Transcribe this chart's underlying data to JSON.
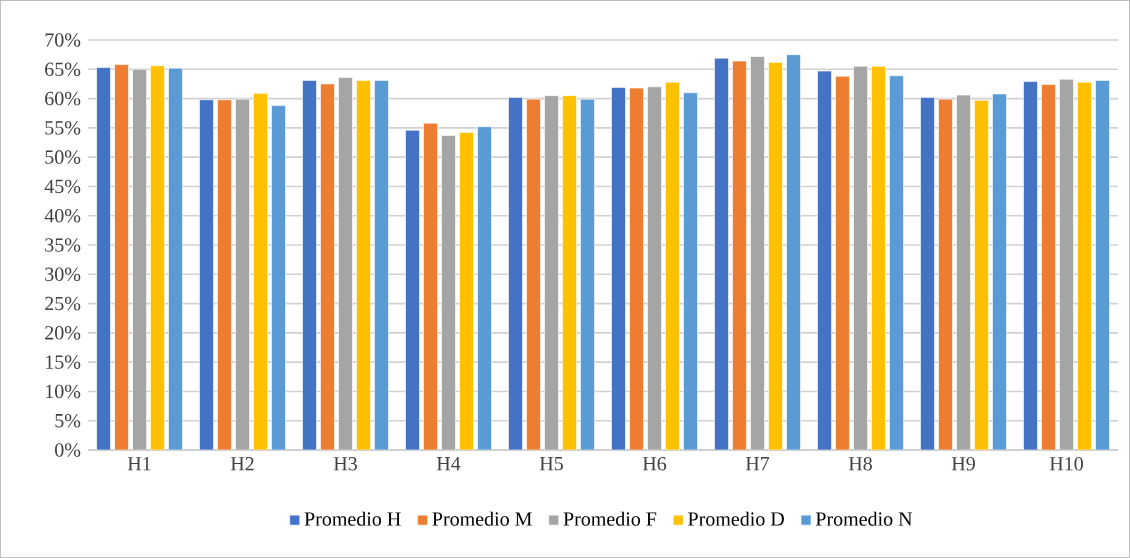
{
  "chart_data": {
    "type": "bar",
    "categories": [
      "H1",
      "H2",
      "H3",
      "H4",
      "H5",
      "H6",
      "H7",
      "H8",
      "H9",
      "H10"
    ],
    "series": [
      {
        "name": "Promedio H",
        "color": "#4472c4",
        "values": [
          65.3,
          59.8,
          63.1,
          54.6,
          60.2,
          61.9,
          66.9,
          64.7,
          60.2,
          62.9
        ]
      },
      {
        "name": "Promedio M",
        "color": "#ed7d31",
        "values": [
          65.8,
          59.8,
          62.5,
          55.8,
          59.9,
          61.8,
          66.4,
          63.8,
          59.9,
          62.4
        ]
      },
      {
        "name": "Promedio F",
        "color": "#a5a5a5",
        "values": [
          65.0,
          59.9,
          63.6,
          53.7,
          60.5,
          62.0,
          67.2,
          65.5,
          60.6,
          63.3
        ]
      },
      {
        "name": "Promedio D",
        "color": "#ffc000",
        "values": [
          65.6,
          60.9,
          63.1,
          54.2,
          60.5,
          62.8,
          66.2,
          65.5,
          59.7,
          62.8
        ]
      },
      {
        "name": "Promedio N",
        "color": "#5b9bd5",
        "values": [
          65.2,
          58.8,
          63.1,
          55.2,
          59.9,
          61.0,
          67.5,
          63.9,
          60.8,
          63.1
        ]
      }
    ],
    "ylim": [
      0,
      70
    ],
    "yticks": [
      {
        "value": 0,
        "label": "0%"
      },
      {
        "value": 5,
        "label": "5%"
      },
      {
        "value": 10,
        "label": "10%"
      },
      {
        "value": 15,
        "label": "15%"
      },
      {
        "value": 20,
        "label": "20%"
      },
      {
        "value": 25,
        "label": "25%"
      },
      {
        "value": 30,
        "label": "30%"
      },
      {
        "value": 35,
        "label": "35%"
      },
      {
        "value": 40,
        "label": "40%"
      },
      {
        "value": 45,
        "label": "45%"
      },
      {
        "value": 50,
        "label": "50%"
      },
      {
        "value": 55,
        "label": "55%"
      },
      {
        "value": 60,
        "label": "60%"
      },
      {
        "value": 65,
        "label": "65%"
      },
      {
        "value": 70,
        "label": "70%"
      }
    ],
    "grid": "y",
    "legend": "bottom"
  }
}
